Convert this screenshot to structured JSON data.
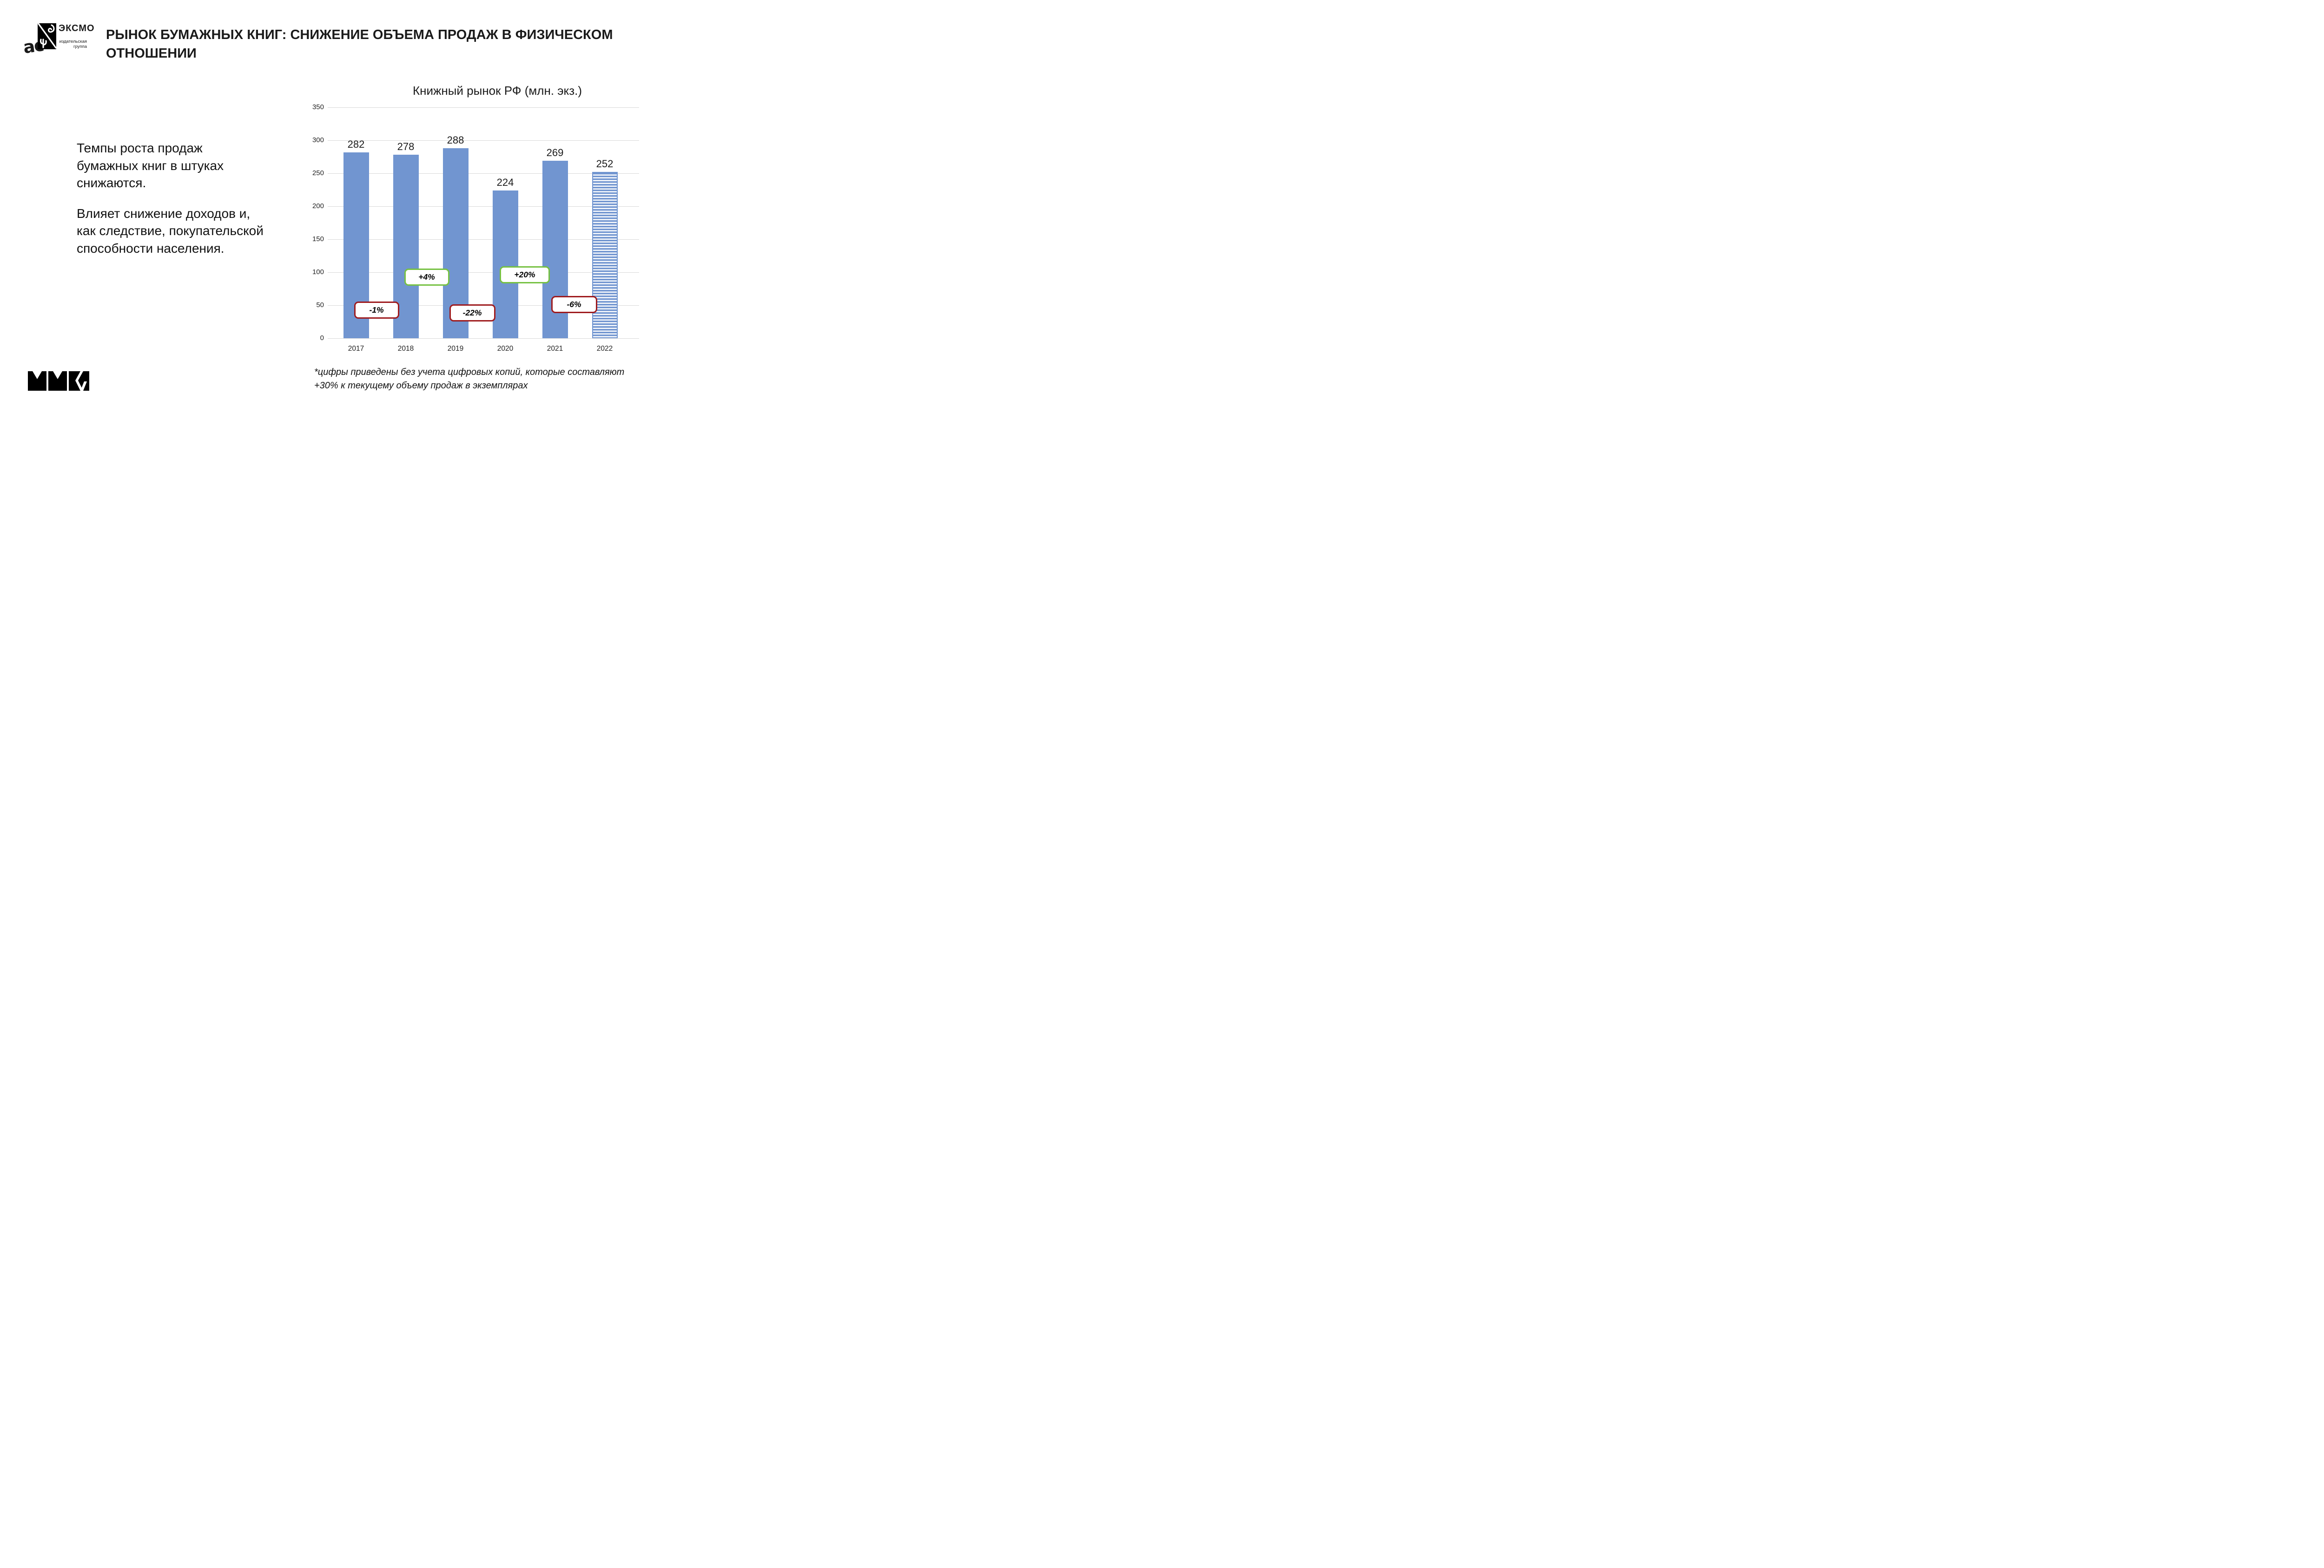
{
  "header": {
    "logo": {
      "ast_script": "ас",
      "brand": "ЭКСМО",
      "subtitle_lines": [
        "издательская",
        "группа"
      ]
    },
    "title_lines": [
      "РЫНОК БУМАЖНЫХ КНИГ: СНИЖЕНИЕ ОБЪЕМА ПРОДАЖ В ФИЗИЧЕСКОМ",
      "ОТНОШЕНИИ"
    ]
  },
  "body": {
    "para1_lines": [
      "Темпы роста продаж",
      "бумажных книг в штуках",
      "снижаются."
    ],
    "para2_lines": [
      "Влияет снижение доходов и,",
      "как следствие, покупательской",
      "способности населения."
    ]
  },
  "footnote_lines": [
    "*цифры приведены без учета цифровых копий, которые составляют",
    "+30% к текущему объему продаж в экземплярах"
  ],
  "footer_logo": "ММКЯ",
  "chart_data": {
    "type": "bar",
    "title": "Книжный рынок РФ (млн. экз.)",
    "categories": [
      "2017",
      "2018",
      "2019",
      "2020",
      "2021",
      "2022"
    ],
    "values": [
      282,
      278,
      288,
      224,
      269,
      252
    ],
    "changes": [
      {
        "label": "-1%",
        "direction": "down",
        "between": "2017-2018"
      },
      {
        "label": "+4%",
        "direction": "up",
        "between": "2018-2019"
      },
      {
        "label": "-22%",
        "direction": "down",
        "between": "2019-2020"
      },
      {
        "label": "+20%",
        "direction": "up",
        "between": "2020-2021"
      },
      {
        "label": "-6%",
        "direction": "down",
        "between": "2021-2022"
      }
    ],
    "ylabel_ticks": [
      0,
      50,
      100,
      150,
      200,
      250,
      300,
      350
    ],
    "ylim": [
      0,
      350
    ],
    "grid": true,
    "legend": "none",
    "xlabel": "",
    "ylabel": "",
    "last_bar_style": "horizontal-hatch",
    "colors": {
      "bar": "#7195d0",
      "grid": "#d9d9d9",
      "change_up": "#76c142",
      "change_down": "#9e1b1e",
      "value_text": "#1b1b1b"
    }
  }
}
